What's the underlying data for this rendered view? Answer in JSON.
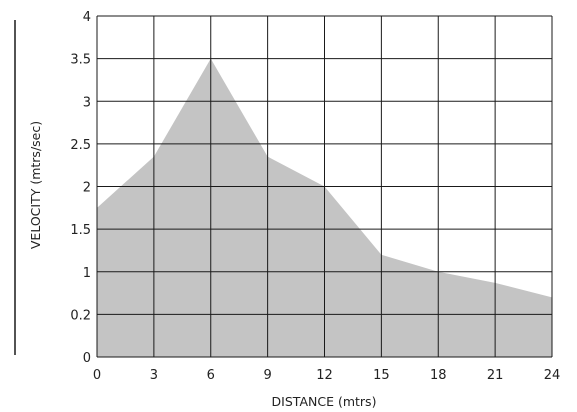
{
  "chart_data": {
    "type": "area",
    "xlabel": "DISTANCE (mtrs)",
    "ylabel": "VELOCITY (mtrs/sec)",
    "x_ticks": [
      "0",
      "3",
      "6",
      "9",
      "12",
      "15",
      "18",
      "21",
      "24"
    ],
    "y_ticks": [
      "0",
      "0.2",
      "1",
      "1.5",
      "2",
      "2.5",
      "3",
      "3.5",
      "4"
    ],
    "x_range": [
      0,
      24
    ],
    "y_range": [
      0,
      4
    ],
    "grid": true,
    "legend": "none",
    "fill_color": "#c4c4c4",
    "grid_color": "#1a1a1a",
    "series": [
      {
        "x": [
          0,
          3,
          6,
          9,
          12,
          15,
          18,
          21,
          24
        ],
        "y": [
          1.75,
          2.35,
          3.5,
          2.35,
          2.0,
          1.2,
          1.0,
          0.87,
          0.7
        ]
      }
    ]
  }
}
